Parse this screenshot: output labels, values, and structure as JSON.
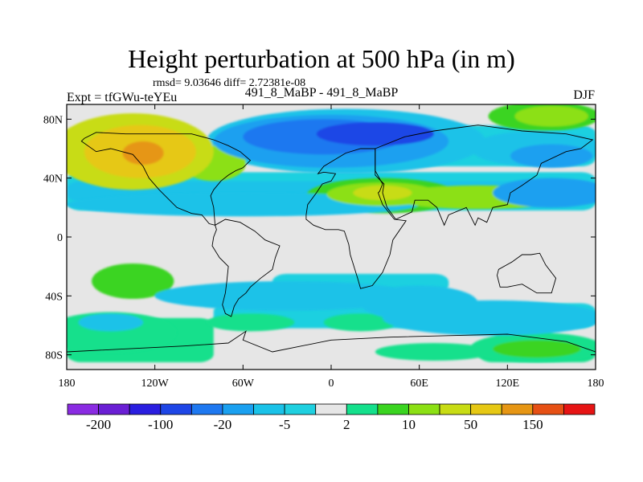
{
  "chart_data": {
    "type": "heatmap",
    "title": "Height perturbation at 500 hPa (in m)",
    "stats": "rmsd= 9.03646 diff= 2.72381e-08",
    "subtitle": "491_8_MaBP - 491_8_MaBP",
    "left_label": "Expt = tfGWu-teYEu",
    "right_label": "DJF",
    "xlabel": "",
    "ylabel": "",
    "x_ticks": [
      {
        "value": -180,
        "label": "180"
      },
      {
        "value": -120,
        "label": "120W"
      },
      {
        "value": -60,
        "label": "60W"
      },
      {
        "value": 0,
        "label": "0"
      },
      {
        "value": 60,
        "label": "60E"
      },
      {
        "value": 120,
        "label": "120E"
      },
      {
        "value": 180,
        "label": "180"
      }
    ],
    "y_ticks": [
      {
        "value": 80,
        "label": "80N"
      },
      {
        "value": 40,
        "label": "40N"
      },
      {
        "value": 0,
        "label": "0"
      },
      {
        "value": -40,
        "label": "40S"
      },
      {
        "value": -80,
        "label": "80S"
      }
    ],
    "xlim": [
      -180,
      180
    ],
    "ylim": [
      -90,
      90
    ],
    "colorbar": {
      "levels": [
        "-200",
        "-150",
        "-100",
        "-50",
        "-20",
        "-10",
        "-5",
        "-2",
        "2",
        "5",
        "10",
        "20",
        "50",
        "100",
        "150",
        "200"
      ],
      "colors": [
        "#8a2be2",
        "#6a1fd4",
        "#2a1ee0",
        "#1e46e6",
        "#1e78f0",
        "#1aa0f0",
        "#1ac2e8",
        "#1fd0e0",
        "#e6e6e6",
        "#14e08c",
        "#3ad420",
        "#8ce014",
        "#c8dc14",
        "#e6c814",
        "#e69614",
        "#e65014",
        "#e61414"
      ],
      "labeled": [
        {
          "index": 1,
          "label": "-200"
        },
        {
          "index": 3,
          "label": "-100"
        },
        {
          "index": 5,
          "label": "-20"
        },
        {
          "index": 7,
          "label": "-5"
        },
        {
          "index": 9,
          "label": "2"
        },
        {
          "index": 11,
          "label": "10"
        },
        {
          "index": 13,
          "label": "50"
        },
        {
          "index": 15,
          "label": "150"
        }
      ]
    },
    "anomalies": [
      {
        "lon": -135,
        "lat": 58,
        "rx": 55,
        "ry": 26,
        "level": 12
      },
      {
        "lon": -130,
        "lat": 58,
        "rx": 38,
        "ry": 18,
        "level": 13
      },
      {
        "lon": -128,
        "lat": 57,
        "rx": 14,
        "ry": 8,
        "level": 14
      },
      {
        "lon": -80,
        "lat": 50,
        "rx": 22,
        "ry": 12,
        "level": 11
      },
      {
        "lon": 35,
        "lat": 28,
        "rx": 52,
        "ry": 12,
        "level": 10
      },
      {
        "lon": 35,
        "lat": 29,
        "rx": 38,
        "ry": 8,
        "level": 11
      },
      {
        "lon": 35,
        "lat": 30,
        "rx": 20,
        "ry": 5,
        "level": 12
      },
      {
        "lon": 100,
        "lat": 27,
        "rx": 60,
        "ry": 8,
        "level": 11
      },
      {
        "lon": 145,
        "lat": 82,
        "rx": 38,
        "ry": 10,
        "level": 10
      },
      {
        "lon": 150,
        "lat": 82,
        "rx": 25,
        "ry": 7,
        "level": 11
      },
      {
        "lon": 10,
        "lat": 65,
        "rx": 95,
        "ry": 22,
        "level": 6
      },
      {
        "lon": 0,
        "lat": 65,
        "rx": 80,
        "ry": 18,
        "level": 5
      },
      {
        "lon": -5,
        "lat": 68,
        "rx": 55,
        "ry": 12,
        "level": 4
      },
      {
        "lon": 30,
        "lat": 70,
        "rx": 40,
        "ry": 8,
        "level": 3
      },
      {
        "lon": 140,
        "lat": 60,
        "rx": 45,
        "ry": 12,
        "level": 6
      },
      {
        "lon": 150,
        "lat": 55,
        "rx": 28,
        "ry": 8,
        "level": 5
      },
      {
        "lon": -60,
        "lat": 22,
        "rx": 120,
        "ry": 8,
        "level": 6
      },
      {
        "lon": 150,
        "lat": 30,
        "rx": 40,
        "ry": 10,
        "level": 5
      },
      {
        "lon": -135,
        "lat": -30,
        "rx": 28,
        "ry": 12,
        "level": 10
      },
      {
        "lon": -150,
        "lat": -65,
        "rx": 45,
        "ry": 14,
        "level": 9
      },
      {
        "lon": -55,
        "lat": -58,
        "rx": 30,
        "ry": 6,
        "level": 9
      },
      {
        "lon": 20,
        "lat": -58,
        "rx": 25,
        "ry": 6,
        "level": 9
      },
      {
        "lon": 140,
        "lat": -75,
        "rx": 45,
        "ry": 10,
        "level": 9
      },
      {
        "lon": 140,
        "lat": -76,
        "rx": 30,
        "ry": 6,
        "level": 10
      },
      {
        "lon": 70,
        "lat": -78,
        "rx": 40,
        "ry": 6,
        "level": 9
      },
      {
        "lon": -30,
        "lat": -40,
        "rx": 90,
        "ry": 10,
        "level": 6
      },
      {
        "lon": 60,
        "lat": -45,
        "rx": 40,
        "ry": 12,
        "level": 6
      },
      {
        "lon": 110,
        "lat": -55,
        "rx": 75,
        "ry": 12,
        "level": 6
      },
      {
        "lon": -150,
        "lat": -58,
        "rx": 22,
        "ry": 6,
        "level": 6
      }
    ],
    "coast_regions": [
      "north-america",
      "south-america",
      "africa-europe",
      "asia",
      "australia",
      "antarctica"
    ]
  }
}
